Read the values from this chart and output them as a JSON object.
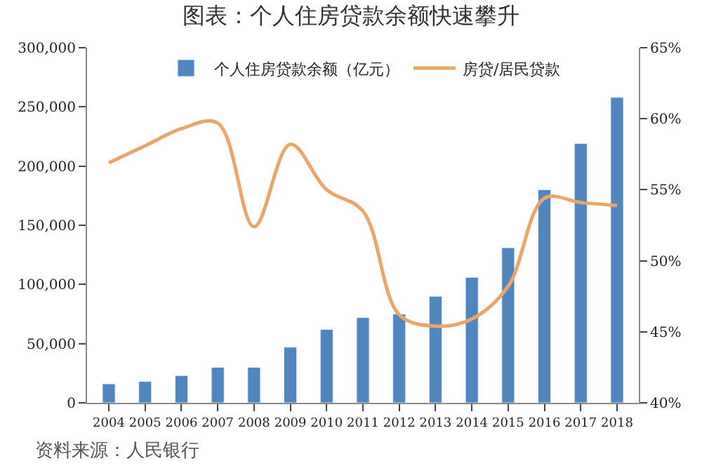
{
  "chart_data": {
    "type": "bar",
    "title": "图表：个人住房贷款余额快速攀升",
    "categories": [
      "2004",
      "2005",
      "2006",
      "2007",
      "2008",
      "2009",
      "2010",
      "2011",
      "2012",
      "2013",
      "2014",
      "2015",
      "2016",
      "2017",
      "2018"
    ],
    "series": [
      {
        "name": "个人住房贷款余额（亿元）",
        "color": "#4f86bf",
        "values": [
          16000,
          18000,
          23000,
          30000,
          30000,
          47000,
          62000,
          72000,
          75000,
          90000,
          106000,
          131000,
          180000,
          219000,
          258000
        ]
      },
      {
        "name": "房贷/居民贷款",
        "type": "line",
        "axis": "y2",
        "color": "#e8a66a",
        "values": [
          56.9,
          58.1,
          59.3,
          59.7,
          52.4,
          58.2,
          55.0,
          53.5,
          46.2,
          45.4,
          45.9,
          48.2,
          54.4,
          54.1,
          53.9
        ]
      }
    ],
    "ylim": [
      0,
      300000
    ],
    "yticks": [
      0,
      {
        "value": 50000,
        "label": "50,000"
      },
      {
        "value": 100000,
        "label": "100,000"
      },
      {
        "value": 150000,
        "label": "150,000"
      },
      {
        "value": 200000,
        "label": "200,000"
      },
      {
        "value": 250000,
        "label": "250,000"
      },
      {
        "value": 300000,
        "label": "300,000"
      }
    ],
    "y2lim": [
      40,
      65
    ],
    "y2ticks": [
      {
        "value": 40,
        "label": "40%"
      },
      {
        "value": 45,
        "label": "45%"
      },
      {
        "value": 50,
        "label": "50%"
      },
      {
        "value": 55,
        "label": "55%"
      },
      {
        "value": 60,
        "label": "60%"
      },
      {
        "value": 65,
        "label": "65%"
      }
    ],
    "legend": "top",
    "marker": "none",
    "annotations": [
      "资料来源：人民银行"
    ]
  }
}
